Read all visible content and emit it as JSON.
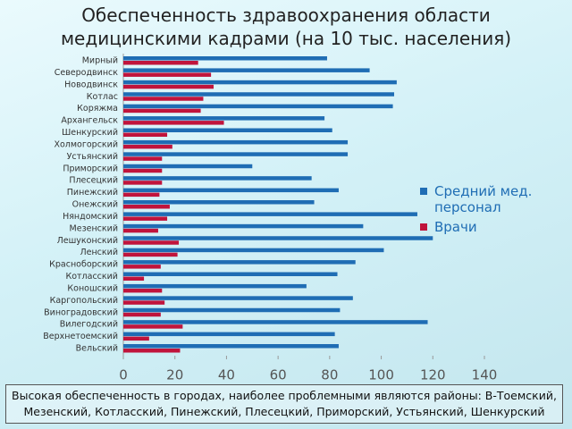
{
  "chart_data": {
    "type": "barh",
    "title": "Обеспеченность здравоохранения области медицинскими кадрами (на 10 тыс. населения)",
    "categories": [
      "Мирный",
      "Северодвинск",
      "Новодвинск",
      "Котлас",
      "Коряжма",
      "Архангельск",
      "Шенкурский",
      "Холмогорский",
      "Устьянский",
      "Приморский",
      "Плесецкий",
      "Пинежский",
      "Онежский",
      "Няндомский",
      "Мезенский",
      "Лешуконский",
      "Ленский",
      "Красноборский",
      "Котласский",
      "Коношский",
      "Каргопольский",
      "Виноградовский",
      "Вилегодский",
      "Верхнетоемский",
      "Вельский"
    ],
    "series": [
      {
        "name": "Средний мед. персонал",
        "color": "#1f6db4",
        "values": [
          79,
          95.5,
          106,
          105,
          104.5,
          78,
          81,
          87,
          87,
          50,
          73,
          83.5,
          74,
          114,
          93,
          120,
          101,
          90,
          83,
          71,
          89,
          84,
          118,
          82,
          83.5
        ]
      },
      {
        "name": "Врачи",
        "color": "#c0143c",
        "values": [
          29,
          34,
          35,
          31,
          30,
          39,
          17,
          19,
          15,
          15,
          15,
          14,
          18,
          17,
          13.5,
          21.5,
          21,
          14.5,
          8,
          15,
          16,
          14.5,
          23,
          10,
          22
        ]
      }
    ],
    "xlim": [
      0,
      140
    ],
    "xticks": [
      0,
      20,
      40,
      60,
      80,
      100,
      120,
      140
    ],
    "legend": "right",
    "note": "Высокая обеспеченность в городах, наиболее проблемными являются районы: В-Тоемский, Мезенский, Котласский, Пинежский, Плесецкий, Приморский, Устьянский, Шенкурский"
  }
}
